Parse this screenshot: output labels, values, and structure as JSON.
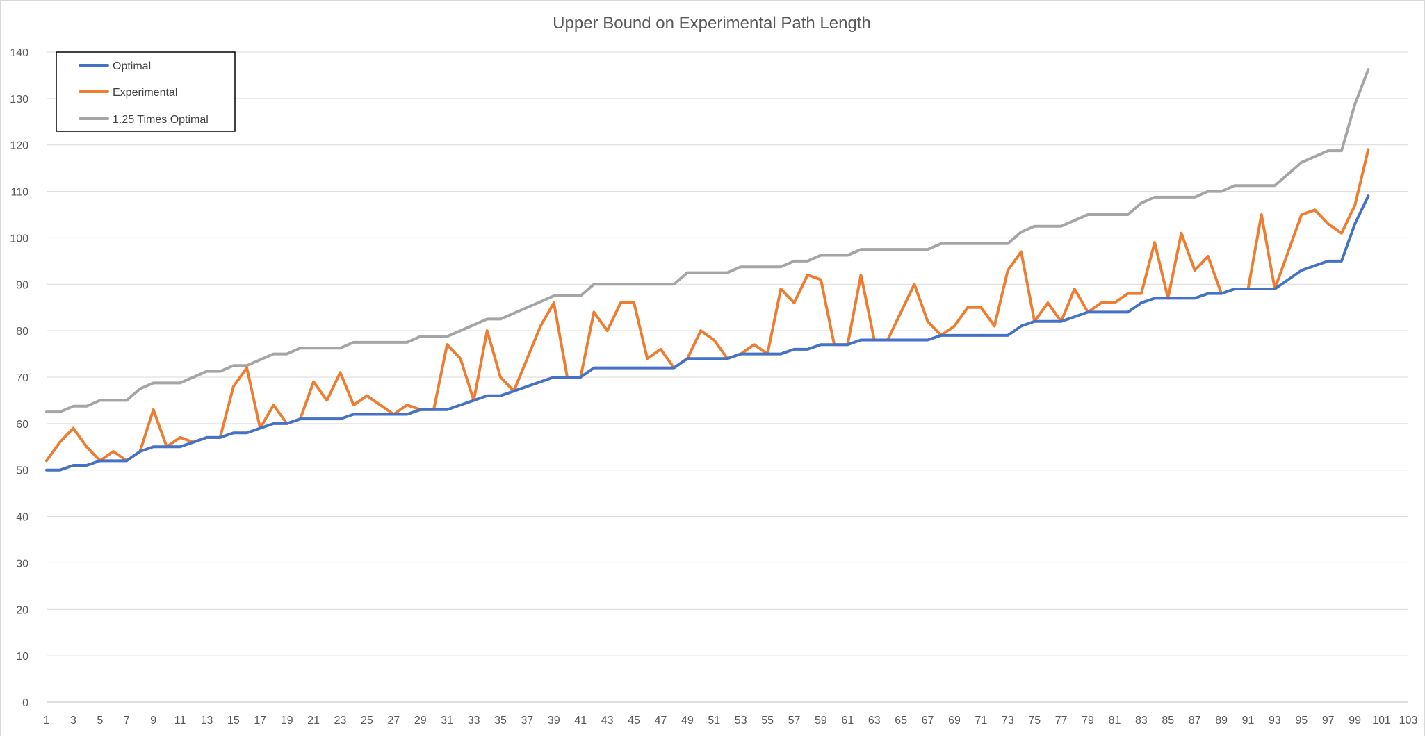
{
  "chart_data": {
    "type": "line",
    "title": "Upper Bound on Experimental Path Length",
    "xlabel": "",
    "ylabel": "",
    "ylim": [
      0,
      140
    ],
    "yticks": [
      0,
      10,
      20,
      30,
      40,
      50,
      60,
      70,
      80,
      90,
      100,
      110,
      120,
      130,
      140
    ],
    "xlim": [
      1,
      103
    ],
    "xticks": [
      1,
      3,
      5,
      7,
      9,
      11,
      13,
      15,
      17,
      19,
      21,
      23,
      25,
      27,
      29,
      31,
      33,
      35,
      37,
      39,
      41,
      43,
      45,
      47,
      49,
      51,
      53,
      55,
      57,
      59,
      61,
      63,
      65,
      67,
      69,
      71,
      73,
      75,
      77,
      79,
      81,
      83,
      85,
      87,
      89,
      91,
      93,
      95,
      97,
      99,
      101,
      103
    ],
    "grid": true,
    "legend_position": "top-left",
    "series": [
      {
        "name": "Optimal",
        "color": "#4472C4",
        "values": [
          50,
          50,
          51,
          51,
          52,
          52,
          52,
          54,
          55,
          55,
          55,
          56,
          57,
          57,
          58,
          58,
          59,
          60,
          60,
          61,
          61,
          61,
          61,
          62,
          62,
          62,
          62,
          62,
          63,
          63,
          63,
          64,
          65,
          66,
          66,
          67,
          68,
          69,
          70,
          70,
          70,
          72,
          72,
          72,
          72,
          72,
          72,
          72,
          74,
          74,
          74,
          74,
          75,
          75,
          75,
          75,
          76,
          76,
          77,
          77,
          77,
          78,
          78,
          78,
          78,
          78,
          78,
          79,
          79,
          79,
          79,
          79,
          79,
          81,
          82,
          82,
          82,
          83,
          84,
          84,
          84,
          84,
          86,
          87,
          87,
          87,
          87,
          88,
          88,
          89,
          89,
          89,
          89,
          91,
          93,
          94,
          95,
          95,
          103,
          109
        ]
      },
      {
        "name": "Experimental",
        "color": "#ED7D31",
        "values": [
          52,
          56,
          59,
          55,
          52,
          54,
          52,
          54,
          63,
          55,
          57,
          56,
          57,
          57,
          68,
          72,
          59,
          64,
          60,
          61,
          69,
          65,
          71,
          64,
          66,
          64,
          62,
          64,
          63,
          63,
          77,
          74,
          65,
          80,
          70,
          67,
          74,
          81,
          86,
          70,
          70,
          84,
          80,
          86,
          86,
          74,
          76,
          72,
          74,
          80,
          78,
          74,
          75,
          77,
          75,
          89,
          86,
          92,
          91,
          77,
          77,
          92,
          78,
          78,
          84,
          90,
          82,
          79,
          81,
          85,
          85,
          81,
          93,
          97,
          82,
          86,
          82,
          89,
          84,
          86,
          86,
          88,
          88,
          99,
          87,
          101,
          93,
          96,
          88,
          89,
          89,
          105,
          89,
          97,
          105,
          106,
          103,
          101,
          107,
          119
        ]
      },
      {
        "name": "1.25 Times Optimal",
        "color": "#A5A5A5",
        "values": [
          62.5,
          62.5,
          63.75,
          63.75,
          65,
          65,
          65,
          67.5,
          68.75,
          68.75,
          68.75,
          70,
          71.25,
          71.25,
          72.5,
          72.5,
          73.75,
          75,
          75,
          76.25,
          76.25,
          76.25,
          76.25,
          77.5,
          77.5,
          77.5,
          77.5,
          77.5,
          78.75,
          78.75,
          78.75,
          80,
          81.25,
          82.5,
          82.5,
          83.75,
          85,
          86.25,
          87.5,
          87.5,
          87.5,
          90,
          90,
          90,
          90,
          90,
          90,
          90,
          92.5,
          92.5,
          92.5,
          92.5,
          93.75,
          93.75,
          93.75,
          93.75,
          95,
          95,
          96.25,
          96.25,
          96.25,
          97.5,
          97.5,
          97.5,
          97.5,
          97.5,
          97.5,
          98.75,
          98.75,
          98.75,
          98.75,
          98.75,
          98.75,
          101.25,
          102.5,
          102.5,
          102.5,
          103.75,
          105,
          105,
          105,
          105,
          107.5,
          108.75,
          108.75,
          108.75,
          108.75,
          110,
          110,
          111.25,
          111.25,
          111.25,
          111.25,
          113.75,
          116.25,
          117.5,
          118.75,
          118.75,
          128.75,
          136.25
        ]
      }
    ]
  }
}
